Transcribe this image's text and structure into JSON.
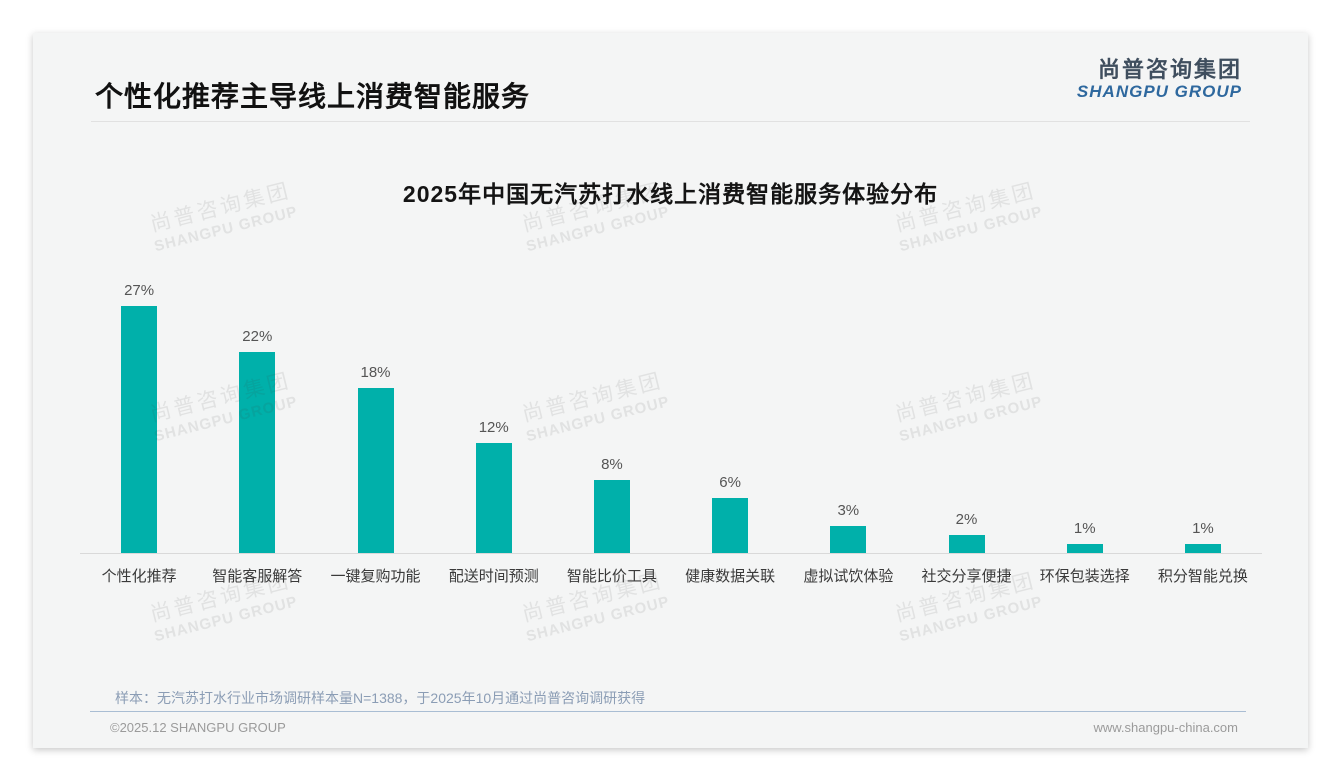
{
  "page": {
    "title": "个性化推荐主导线上消费智能服务",
    "logo": {
      "zh": "尚普咨询集团",
      "en": "SHANGPU GROUP"
    },
    "watermark": {
      "zh": "尚普咨询集团",
      "en": "SHANGPU GROUP"
    },
    "footnote": "样本：无汽苏打水行业市场调研样本量N=1388，于2025年10月通过尚普咨询调研获得",
    "footer": {
      "copyright": "©2025.12 SHANGPU GROUP",
      "website": "www.shangpu-china.com"
    }
  },
  "chart_data": {
    "type": "bar",
    "title": "2025年中国无汽苏打水线上消费智能服务体验分布",
    "categories": [
      "个性化推荐",
      "智能客服解答",
      "一键复购功能",
      "配送时间预测",
      "智能比价工具",
      "健康数据关联",
      "虚拟试饮体验",
      "社交分享便捷",
      "环保包装选择",
      "积分智能兑换"
    ],
    "values": [
      27,
      22,
      18,
      12,
      8,
      6,
      3,
      2,
      1,
      1
    ],
    "value_labels": [
      "27%",
      "22%",
      "18%",
      "12%",
      "8%",
      "6%",
      "3%",
      "2%",
      "1%",
      "1%"
    ],
    "unit": "%",
    "bar_color": "#00b0aa",
    "xlabel": "",
    "ylabel": "",
    "ylim": [
      0,
      30
    ],
    "grid": false,
    "legend": false,
    "axis_line_color": "#d9d9d9"
  }
}
